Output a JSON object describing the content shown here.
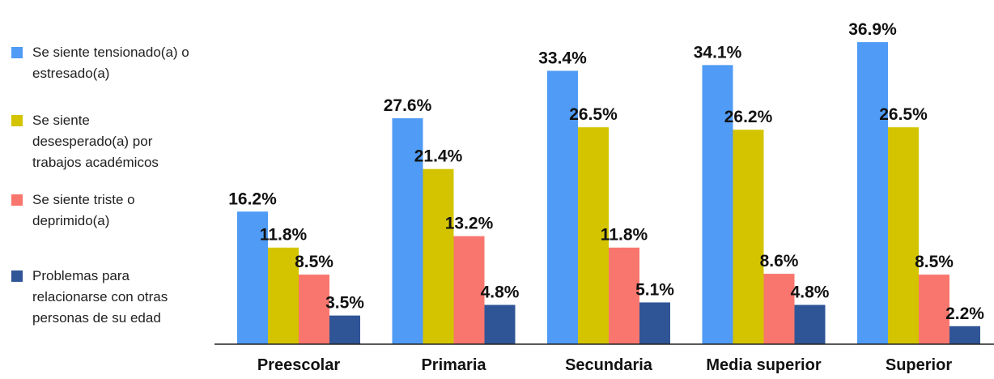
{
  "chart_data": {
    "type": "bar",
    "categories": [
      "Preescolar",
      "Primaria",
      "Secundaria",
      "Media superior",
      "Superior"
    ],
    "series": [
      {
        "name": "Se siente tensionado(a) o estresado(a)",
        "values": [
          16.2,
          27.6,
          33.4,
          34.1,
          36.9
        ],
        "labels": [
          "16.2%",
          "27.6%",
          "33.4%",
          "34.1%",
          "36.9%"
        ],
        "color": "#4f9bf5"
      },
      {
        "name": "Se siente desesperado(a) por trabajos académicos",
        "values": [
          11.8,
          21.4,
          26.5,
          26.2,
          26.5
        ],
        "labels": [
          "11.8%",
          "21.4%",
          "26.5%",
          "26.2%",
          "26.5%"
        ],
        "color": "#d4c400"
      },
      {
        "name": "Se siente triste o deprimido(a)",
        "values": [
          8.5,
          13.2,
          11.8,
          8.6,
          8.5
        ],
        "labels": [
          "8.5%",
          "13.2%",
          "11.8%",
          "8.6%",
          "8.5%"
        ],
        "color": "#f8766d"
      },
      {
        "name": "Problemas para relacionarse con otras personas de su edad",
        "values": [
          3.5,
          4.8,
          5.1,
          4.8,
          2.2
        ],
        "labels": [
          "3.5%",
          "4.8%",
          "5.1%",
          "4.8%",
          "2.2%"
        ],
        "color": "#2f5597"
      }
    ],
    "ylim": [
      0,
      37.5
    ],
    "legend_position": "left",
    "grid": false
  },
  "legend": {
    "items": [
      {
        "lines": [
          "Se siente tensionado(a) o",
          "estresado(a)"
        ],
        "color": "#4f9bf5"
      },
      {
        "lines": [
          "Se siente",
          "desesperado(a) por",
          "trabajos académicos"
        ],
        "color": "#d4c400"
      },
      {
        "lines": [
          "Se siente triste o",
          "deprimido(a)"
        ],
        "color": "#f8766d"
      },
      {
        "lines": [
          "Problemas para",
          "relacionarse con otras",
          "personas de su edad"
        ],
        "color": "#2f5597"
      }
    ]
  }
}
